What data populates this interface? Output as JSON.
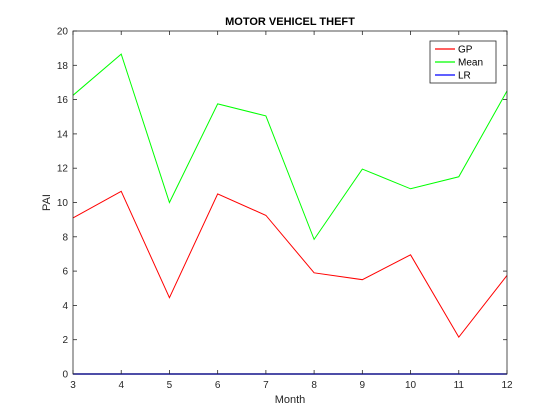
{
  "chart_data": {
    "type": "line",
    "title": "MOTOR VEHICEL THEFT",
    "xlabel": "Month",
    "ylabel": "PAI",
    "xlim": [
      3,
      12
    ],
    "ylim": [
      0,
      20
    ],
    "x": [
      3,
      4,
      5,
      6,
      7,
      8,
      9,
      10,
      11,
      12
    ],
    "x_ticks": [
      "3",
      "4",
      "5",
      "6",
      "7",
      "8",
      "9",
      "10",
      "11",
      "12"
    ],
    "y_ticks": [
      "0",
      "2",
      "4",
      "6",
      "8",
      "10",
      "12",
      "14",
      "16",
      "18",
      "20"
    ],
    "grid": false,
    "legend_position": "top-right",
    "series": [
      {
        "name": "GP",
        "color": "#ff0000",
        "values": [
          9.1,
          10.65,
          4.45,
          10.5,
          9.25,
          5.9,
          5.5,
          6.95,
          2.15,
          5.75
        ]
      },
      {
        "name": "Mean",
        "color": "#00ff00",
        "values": [
          16.25,
          18.65,
          10.0,
          15.75,
          15.05,
          7.85,
          11.95,
          10.8,
          11.5,
          16.5
        ]
      },
      {
        "name": "LR",
        "color": "#0000ff",
        "values": [
          0,
          0,
          0,
          0,
          0,
          0,
          0,
          0,
          0,
          0
        ]
      }
    ]
  }
}
